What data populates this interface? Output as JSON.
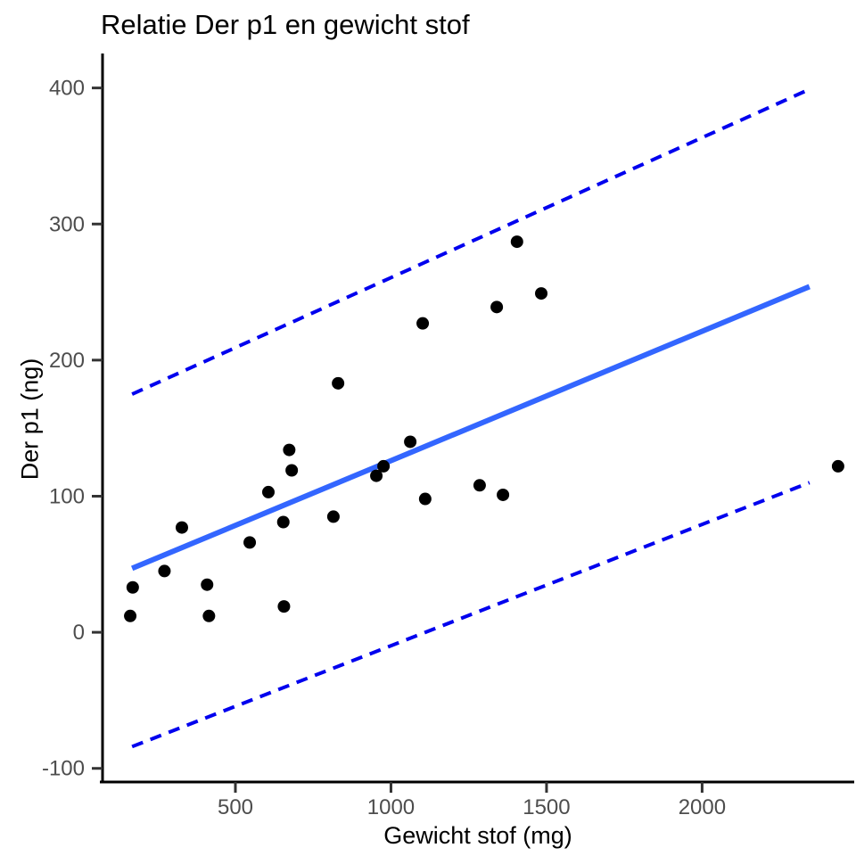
{
  "chart_data": {
    "type": "scatter",
    "title": "Relatie Der p1 en gewicht stof",
    "xlabel": "Gewicht stof (mg)",
    "ylabel": "Der p1 (ng)",
    "xlim": [
      73,
      2486
    ],
    "ylim": [
      -110,
      424
    ],
    "x_ticks": [
      500,
      1000,
      1500,
      2000
    ],
    "y_ticks": [
      -100,
      0,
      100,
      200,
      300,
      400
    ],
    "grid": false,
    "legend": "none",
    "points": [
      [
        162,
        12
      ],
      [
        170,
        33
      ],
      [
        272,
        45
      ],
      [
        328,
        77
      ],
      [
        409,
        35
      ],
      [
        415,
        12
      ],
      [
        546,
        66
      ],
      [
        606,
        103
      ],
      [
        654,
        81
      ],
      [
        656,
        19
      ],
      [
        673,
        134
      ],
      [
        681,
        119
      ],
      [
        815,
        85
      ],
      [
        830,
        183
      ],
      [
        953,
        115
      ],
      [
        976,
        122
      ],
      [
        1062,
        140
      ],
      [
        1102,
        227
      ],
      [
        1110,
        98
      ],
      [
        1285,
        108
      ],
      [
        1340,
        239
      ],
      [
        1360,
        101
      ],
      [
        1405,
        287
      ],
      [
        1483,
        249
      ],
      [
        2437,
        122
      ]
    ],
    "trend_line": {
      "name": "regression-line",
      "x": [
        168,
        2345
      ],
      "y": [
        47,
        254
      ],
      "style": "solid"
    },
    "upper_band": {
      "name": "prediction-upper",
      "x": [
        168,
        2345
      ],
      "y": [
        175,
        399
      ],
      "style": "dashed"
    },
    "lower_band": {
      "name": "prediction-lower",
      "x": [
        168,
        2345
      ],
      "y": [
        -84,
        110
      ],
      "style": "dashed"
    },
    "colors": {
      "point": "#000000",
      "trend": "#3366FF",
      "band": "#0000EE",
      "axis": "#000000",
      "tick": "#333333",
      "tick_label": "#4D4D4D"
    }
  }
}
